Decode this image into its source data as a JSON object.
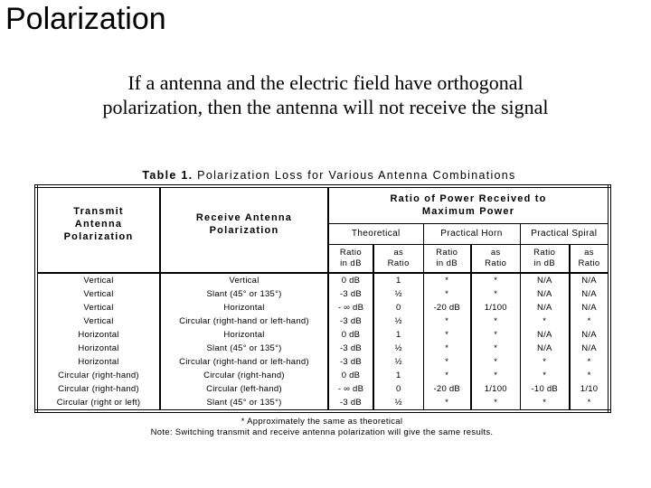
{
  "page": {
    "title": "Polarization",
    "subtitle": "If a antenna and the electric field have orthogonal\npolarization, then the antenna will not receive the signal"
  },
  "table": {
    "caption_bold": "Table 1.",
    "caption_rest": " Polarization Loss for Various Antenna Combinations",
    "headers": {
      "transmit": "Transmit\nAntenna\nPolarization",
      "receive": "Receive Antenna\nPolarization",
      "ratio_group": "Ratio of Power Received to\nMaximum Power",
      "groups": [
        "Theoretical",
        "Practical Horn",
        "Practical Spiral"
      ],
      "sub_db": "Ratio\nin dB",
      "sub_ratio": "as\nRatio"
    },
    "rows": [
      [
        "Vertical",
        "Vertical",
        "0 dB",
        "1",
        "*",
        "*",
        "N/A",
        "N/A"
      ],
      [
        "Vertical",
        "Slant (45° or 135°)",
        "-3 dB",
        "½",
        "*",
        "*",
        "N/A",
        "N/A"
      ],
      [
        "Vertical",
        "Horizontal",
        "- ∞ dB",
        "0",
        "-20 dB",
        "1/100",
        "N/A",
        "N/A"
      ],
      [
        "Vertical",
        "Circular (right-hand or left-hand)",
        "-3 dB",
        "½",
        "*",
        "*",
        "*",
        "*"
      ],
      [
        "Horizontal",
        "Horizontal",
        "0 dB",
        "1",
        "*",
        "*",
        "N/A",
        "N/A"
      ],
      [
        "Horizontal",
        "Slant (45° or 135°)",
        "-3 dB",
        "½",
        "*",
        "*",
        "N/A",
        "N/A"
      ],
      [
        "Horizontal",
        "Circular (right-hand or left-hand)",
        "-3 dB",
        "½",
        "*",
        "*",
        "*",
        "*"
      ],
      [
        "Circular (right-hand)",
        "Circular (right-hand)",
        "0 dB",
        "1",
        "*",
        "*",
        "*",
        "*"
      ],
      [
        "Circular (right-hand)",
        "Circular (left-hand)",
        "- ∞ dB",
        "0",
        "-20 dB",
        "1/100",
        "-10 dB",
        "1/10"
      ],
      [
        "Circular (right or left)",
        "Slant (45° or 135°)",
        "-3 dB",
        "½",
        "*",
        "*",
        "*",
        "*"
      ]
    ],
    "footnote_asterisk": "* Approximately the same as theoretical",
    "footnote_note": "Note:  Switching transmit and receive antenna polarization will give the same results."
  }
}
